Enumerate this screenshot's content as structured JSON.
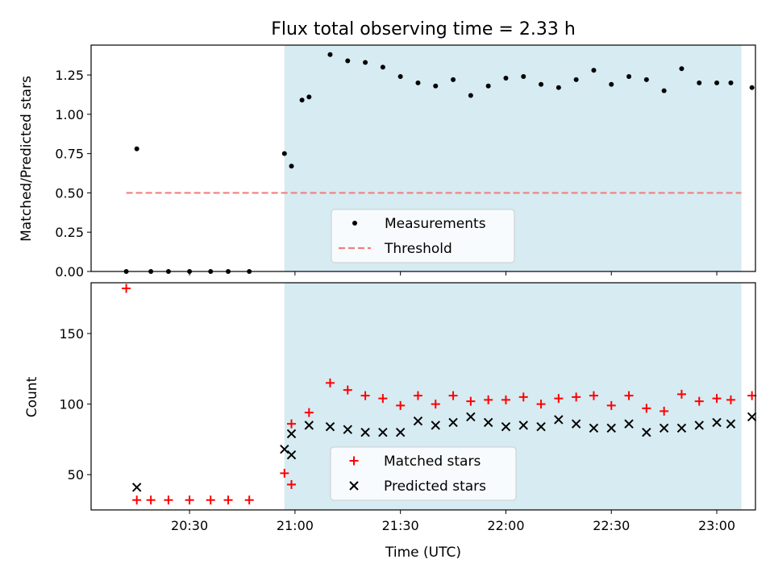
{
  "chart_data": [
    {
      "type": "scatter",
      "title": "Flux total observing time = 2.33 h",
      "ylabel": "Matched/Predicted stars",
      "ylim": [
        0,
        1.44
      ],
      "yticks": [
        0,
        0.25,
        0.5,
        0.75,
        1.0,
        1.25
      ],
      "ytick_labels": [
        "0.00",
        "0.25",
        "0.50",
        "0.75",
        "1.00",
        "1.25"
      ],
      "shaded_span": [
        "20:57",
        "23:07"
      ],
      "shade_color": "#add8e6",
      "legend": "lower-center",
      "series": [
        {
          "name": "Measurements",
          "marker": "dot",
          "color": "#000000",
          "points": [
            [
              "20:12",
              0.0
            ],
            [
              "20:15",
              0.78
            ],
            [
              "20:19",
              0.0
            ],
            [
              "20:24",
              0.0
            ],
            [
              "20:30",
              0.0
            ],
            [
              "20:36",
              0.0
            ],
            [
              "20:41",
              0.0
            ],
            [
              "20:47",
              0.0
            ],
            [
              "20:57",
              0.75
            ],
            [
              "20:52",
              null
            ],
            [
              "21:02",
              1.09
            ],
            [
              "20:59",
              0.67
            ],
            [
              "21:04",
              1.11
            ],
            [
              "21:10",
              1.38
            ],
            [
              "21:15",
              1.34
            ],
            [
              "21:20",
              1.33
            ],
            [
              "21:25",
              1.3
            ],
            [
              "21:30",
              1.24
            ],
            [
              "21:35",
              1.2
            ],
            [
              "21:40",
              1.18
            ],
            [
              "21:45",
              1.22
            ],
            [
              "21:50",
              1.12
            ],
            [
              "21:55",
              1.18
            ],
            [
              "22:00",
              1.23
            ],
            [
              "22:05",
              1.24
            ],
            [
              "22:10",
              1.19
            ],
            [
              "22:15",
              1.17
            ],
            [
              "22:20",
              1.22
            ],
            [
              "22:25",
              1.28
            ],
            [
              "22:30",
              1.19
            ],
            [
              "22:35",
              1.24
            ],
            [
              "22:40",
              1.22
            ],
            [
              "22:45",
              1.15
            ],
            [
              "22:50",
              1.29
            ],
            [
              "22:55",
              1.2
            ],
            [
              "23:00",
              1.2
            ],
            [
              "23:04",
              1.2
            ],
            [
              "23:10",
              1.17
            ]
          ]
        },
        {
          "name": "Threshold",
          "marker": "dashed-line",
          "color": "#f08080",
          "points": [
            [
              "20:12",
              0.5
            ],
            [
              "23:07",
              0.5
            ]
          ]
        }
      ]
    },
    {
      "type": "scatter",
      "xlabel": "Time (UTC)",
      "ylabel": "Count",
      "ylim": [
        25,
        186
      ],
      "yticks": [
        50,
        100,
        150
      ],
      "xticks": [
        "20:30",
        "21:00",
        "21:30",
        "22:00",
        "22:30",
        "23:00"
      ],
      "shaded_span": [
        "20:57",
        "23:07"
      ],
      "shade_color": "#add8e6",
      "legend": "lower-center",
      "series": [
        {
          "name": "Matched stars",
          "marker": "plus",
          "color": "#ff0000",
          "points": [
            [
              "20:12",
              182
            ],
            [
              "20:15",
              32
            ],
            [
              "20:19",
              32
            ],
            [
              "20:24",
              32
            ],
            [
              "20:30",
              32
            ],
            [
              "20:36",
              32
            ],
            [
              "20:41",
              32
            ],
            [
              "20:47",
              32
            ],
            [
              "20:57",
              51
            ],
            [
              "20:59",
              86
            ],
            [
              "20:59",
              43
            ],
            [
              "21:04",
              94
            ],
            [
              "21:10",
              115
            ],
            [
              "21:15",
              110
            ],
            [
              "21:20",
              106
            ],
            [
              "21:25",
              104
            ],
            [
              "21:30",
              99
            ],
            [
              "21:35",
              106
            ],
            [
              "21:40",
              100
            ],
            [
              "21:45",
              106
            ],
            [
              "21:50",
              102
            ],
            [
              "21:55",
              103
            ],
            [
              "22:00",
              103
            ],
            [
              "22:05",
              105
            ],
            [
              "22:10",
              100
            ],
            [
              "22:15",
              104
            ],
            [
              "22:20",
              105
            ],
            [
              "22:25",
              106
            ],
            [
              "22:30",
              99
            ],
            [
              "22:35",
              106
            ],
            [
              "22:40",
              97
            ],
            [
              "22:45",
              95
            ],
            [
              "22:50",
              107
            ],
            [
              "22:55",
              102
            ],
            [
              "23:00",
              104
            ],
            [
              "23:04",
              103
            ],
            [
              "23:10",
              106
            ]
          ]
        },
        {
          "name": "Predicted stars",
          "marker": "x",
          "color": "#000000",
          "points": [
            [
              "20:15",
              41
            ],
            [
              "20:57",
              68
            ],
            [
              "20:59",
              79
            ],
            [
              "20:59",
              64
            ],
            [
              "21:04",
              85
            ],
            [
              "21:10",
              84
            ],
            [
              "21:15",
              82
            ],
            [
              "21:20",
              80
            ],
            [
              "21:25",
              80
            ],
            [
              "21:30",
              80
            ],
            [
              "21:35",
              88
            ],
            [
              "21:40",
              85
            ],
            [
              "21:45",
              87
            ],
            [
              "21:50",
              91
            ],
            [
              "21:55",
              87
            ],
            [
              "22:00",
              84
            ],
            [
              "22:05",
              85
            ],
            [
              "22:10",
              84
            ],
            [
              "22:15",
              89
            ],
            [
              "22:20",
              86
            ],
            [
              "22:25",
              83
            ],
            [
              "22:30",
              83
            ],
            [
              "22:35",
              86
            ],
            [
              "22:40",
              80
            ],
            [
              "22:45",
              83
            ],
            [
              "22:50",
              83
            ],
            [
              "22:55",
              85
            ],
            [
              "23:00",
              87
            ],
            [
              "23:04",
              86
            ],
            [
              "23:10",
              91
            ]
          ]
        }
      ]
    }
  ]
}
